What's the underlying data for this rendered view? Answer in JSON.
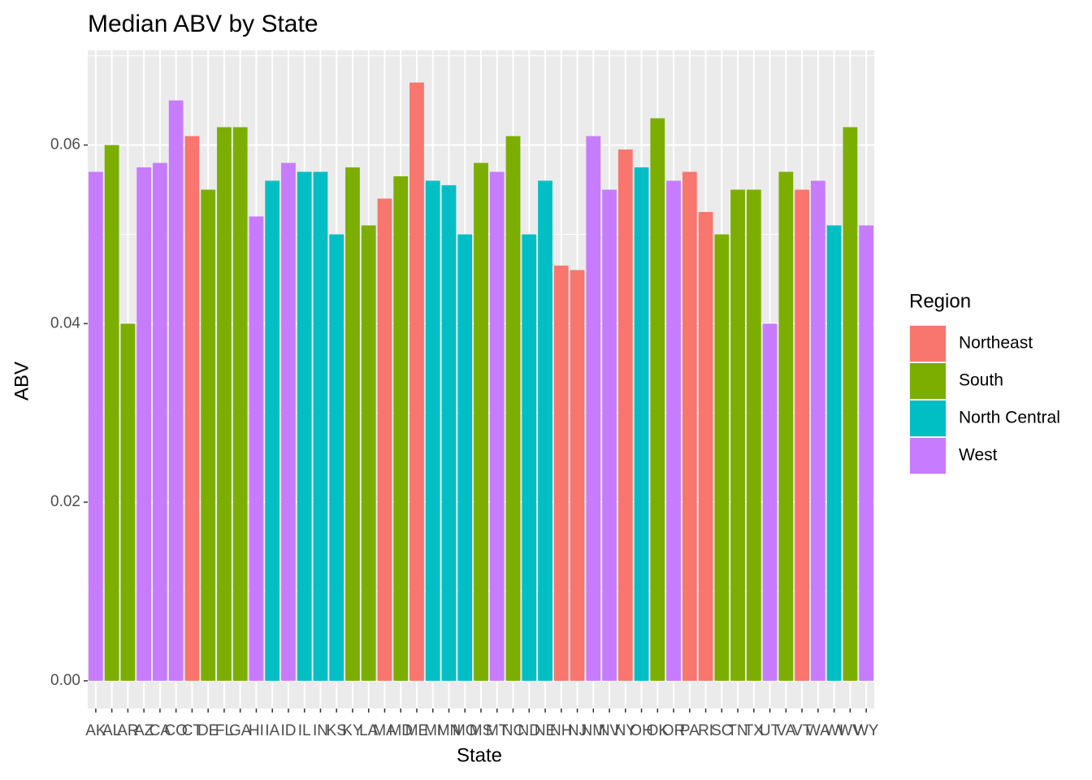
{
  "chart_data": {
    "type": "bar",
    "title": "Median ABV by State",
    "x_label": "State",
    "y_label": "ABV",
    "categories": [
      "AK",
      "AL",
      "AR",
      "AZ",
      "CA",
      "CO",
      "CT",
      "DE",
      "FL",
      "GA",
      "HI",
      "IA",
      "ID",
      "IL",
      "IN",
      "KS",
      "KY",
      "LA",
      "MA",
      "MD",
      "ME",
      "MI",
      "MN",
      "MO",
      "MS",
      "MT",
      "NC",
      "ND",
      "NE",
      "NH",
      "NJ",
      "NM",
      "NV",
      "NY",
      "OH",
      "OK",
      "OR",
      "PA",
      "RI",
      "SC",
      "TN",
      "TX",
      "UT",
      "VA",
      "VT",
      "WA",
      "WI",
      "WV",
      "WY"
    ],
    "values": [
      0.057,
      0.06,
      0.04,
      0.0575,
      0.058,
      0.065,
      0.061,
      0.055,
      0.062,
      0.062,
      0.052,
      0.056,
      0.058,
      0.057,
      0.057,
      0.05,
      0.0575,
      0.051,
      0.054,
      0.0565,
      0.067,
      0.056,
      0.0555,
      0.05,
      0.058,
      0.057,
      0.061,
      0.05,
      0.056,
      0.0465,
      0.046,
      0.061,
      0.055,
      0.0595,
      0.0575,
      0.063,
      0.056,
      0.057,
      0.0525,
      0.05,
      0.055,
      0.055,
      0.04,
      0.057,
      0.055,
      0.056,
      0.051,
      0.062,
      0.051
    ],
    "regions": [
      "West",
      "South",
      "South",
      "West",
      "West",
      "West",
      "Northeast",
      "South",
      "South",
      "South",
      "West",
      "North Central",
      "West",
      "North Central",
      "North Central",
      "North Central",
      "South",
      "South",
      "Northeast",
      "South",
      "Northeast",
      "North Central",
      "North Central",
      "North Central",
      "South",
      "West",
      "South",
      "North Central",
      "North Central",
      "Northeast",
      "Northeast",
      "West",
      "West",
      "Northeast",
      "North Central",
      "South",
      "West",
      "Northeast",
      "Northeast",
      "South",
      "South",
      "South",
      "West",
      "South",
      "Northeast",
      "West",
      "North Central",
      "South",
      "West"
    ],
    "legend_title": "Region",
    "legend": [
      {
        "name": "Northeast",
        "color": "#F8766D"
      },
      {
        "name": "South",
        "color": "#7CAE00"
      },
      {
        "name": "North Central",
        "color": "#00BFC4"
      },
      {
        "name": "West",
        "color": "#C77CFF"
      }
    ],
    "legend_position": "right",
    "ylim": [
      -0.0031,
      0.0706
    ],
    "yticks": [
      {
        "value": 0,
        "label": "0.00"
      },
      {
        "value": 0.02,
        "label": "0.02"
      },
      {
        "value": 0.04,
        "label": "0.04"
      },
      {
        "value": 0.06,
        "label": "0.06"
      }
    ],
    "grid": true
  }
}
